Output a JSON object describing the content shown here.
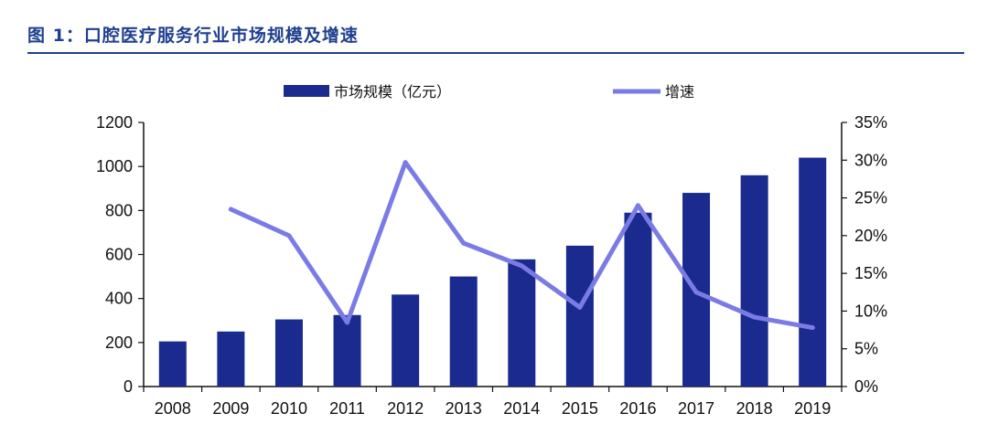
{
  "figure": {
    "title": "图 1：口腔医疗服务行业市场规模及增速"
  },
  "chart_data": {
    "type": "bar",
    "categories": [
      "2008",
      "2009",
      "2010",
      "2011",
      "2012",
      "2013",
      "2014",
      "2015",
      "2016",
      "2017",
      "2018",
      "2019"
    ],
    "series": [
      {
        "name": "市场规模（亿元）",
        "type": "bar",
        "axis": "left",
        "color": "#1a2a8e",
        "values": [
          205,
          250,
          305,
          325,
          418,
          500,
          578,
          640,
          790,
          880,
          960,
          1040
        ]
      },
      {
        "name": "增速",
        "type": "line",
        "axis": "right",
        "color": "#7b7be6",
        "values": [
          null,
          23.5,
          20.0,
          8.5,
          29.7,
          19.0,
          16.0,
          10.5,
          24.0,
          12.5,
          9.2,
          7.8
        ]
      }
    ],
    "y_left": {
      "ylim": [
        0,
        1200
      ],
      "ticks": [
        0,
        200,
        400,
        600,
        800,
        1000,
        1200
      ]
    },
    "y_right": {
      "ylim": [
        0,
        35
      ],
      "ticks": [
        "0%",
        "5%",
        "10%",
        "15%",
        "20%",
        "25%",
        "30%",
        "35%"
      ]
    },
    "legend_position": "top-center",
    "grid": false
  }
}
